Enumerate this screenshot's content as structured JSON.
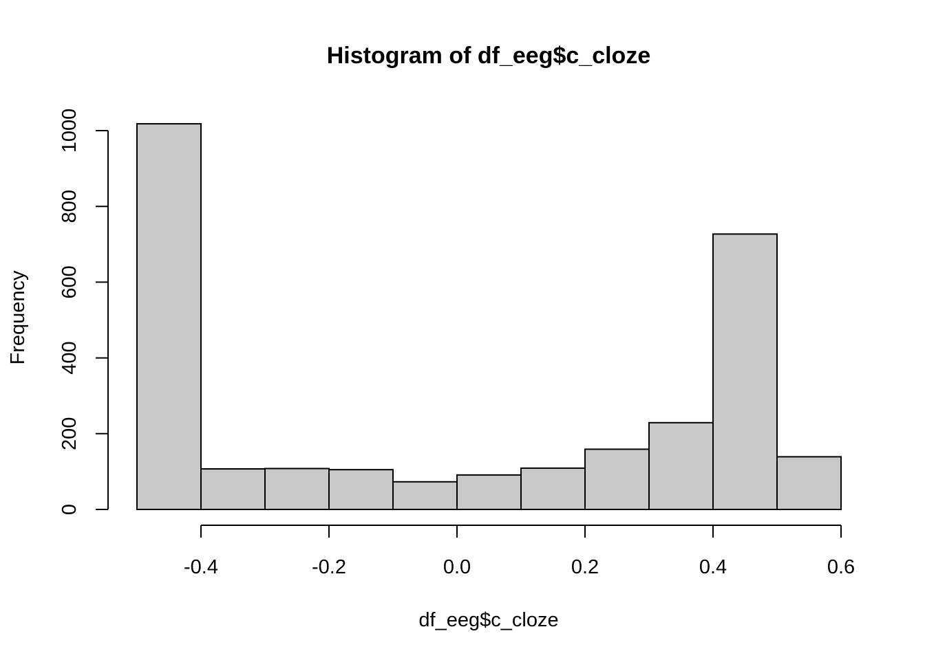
{
  "chart_data": {
    "type": "bar",
    "title": "Histogram of df_eeg$c_cloze",
    "xlabel": "df_eeg$c_cloze",
    "ylabel": "Frequency",
    "bin_edges": [
      -0.5,
      -0.4,
      -0.3,
      -0.2,
      -0.1,
      0.0,
      0.1,
      0.2,
      0.3,
      0.4,
      0.5,
      0.6
    ],
    "values": [
      1018,
      107,
      108,
      105,
      73,
      91,
      109,
      159,
      229,
      727,
      139
    ],
    "xlim": [
      -0.5,
      0.6
    ],
    "ylim": [
      0,
      1018
    ],
    "x_ticks": [
      -0.4,
      -0.2,
      0.0,
      0.2,
      0.4,
      0.6
    ],
    "x_tick_labels": [
      "-0.4",
      "-0.2",
      "0.0",
      "0.2",
      "0.4",
      "0.6"
    ],
    "y_ticks": [
      0,
      200,
      400,
      600,
      800,
      1000
    ],
    "y_tick_labels": [
      "0",
      "200",
      "400",
      "600",
      "800",
      "1000"
    ],
    "bar_color": "#c8c8c8",
    "border_color": "#000000",
    "grid": false,
    "legend": "none"
  }
}
